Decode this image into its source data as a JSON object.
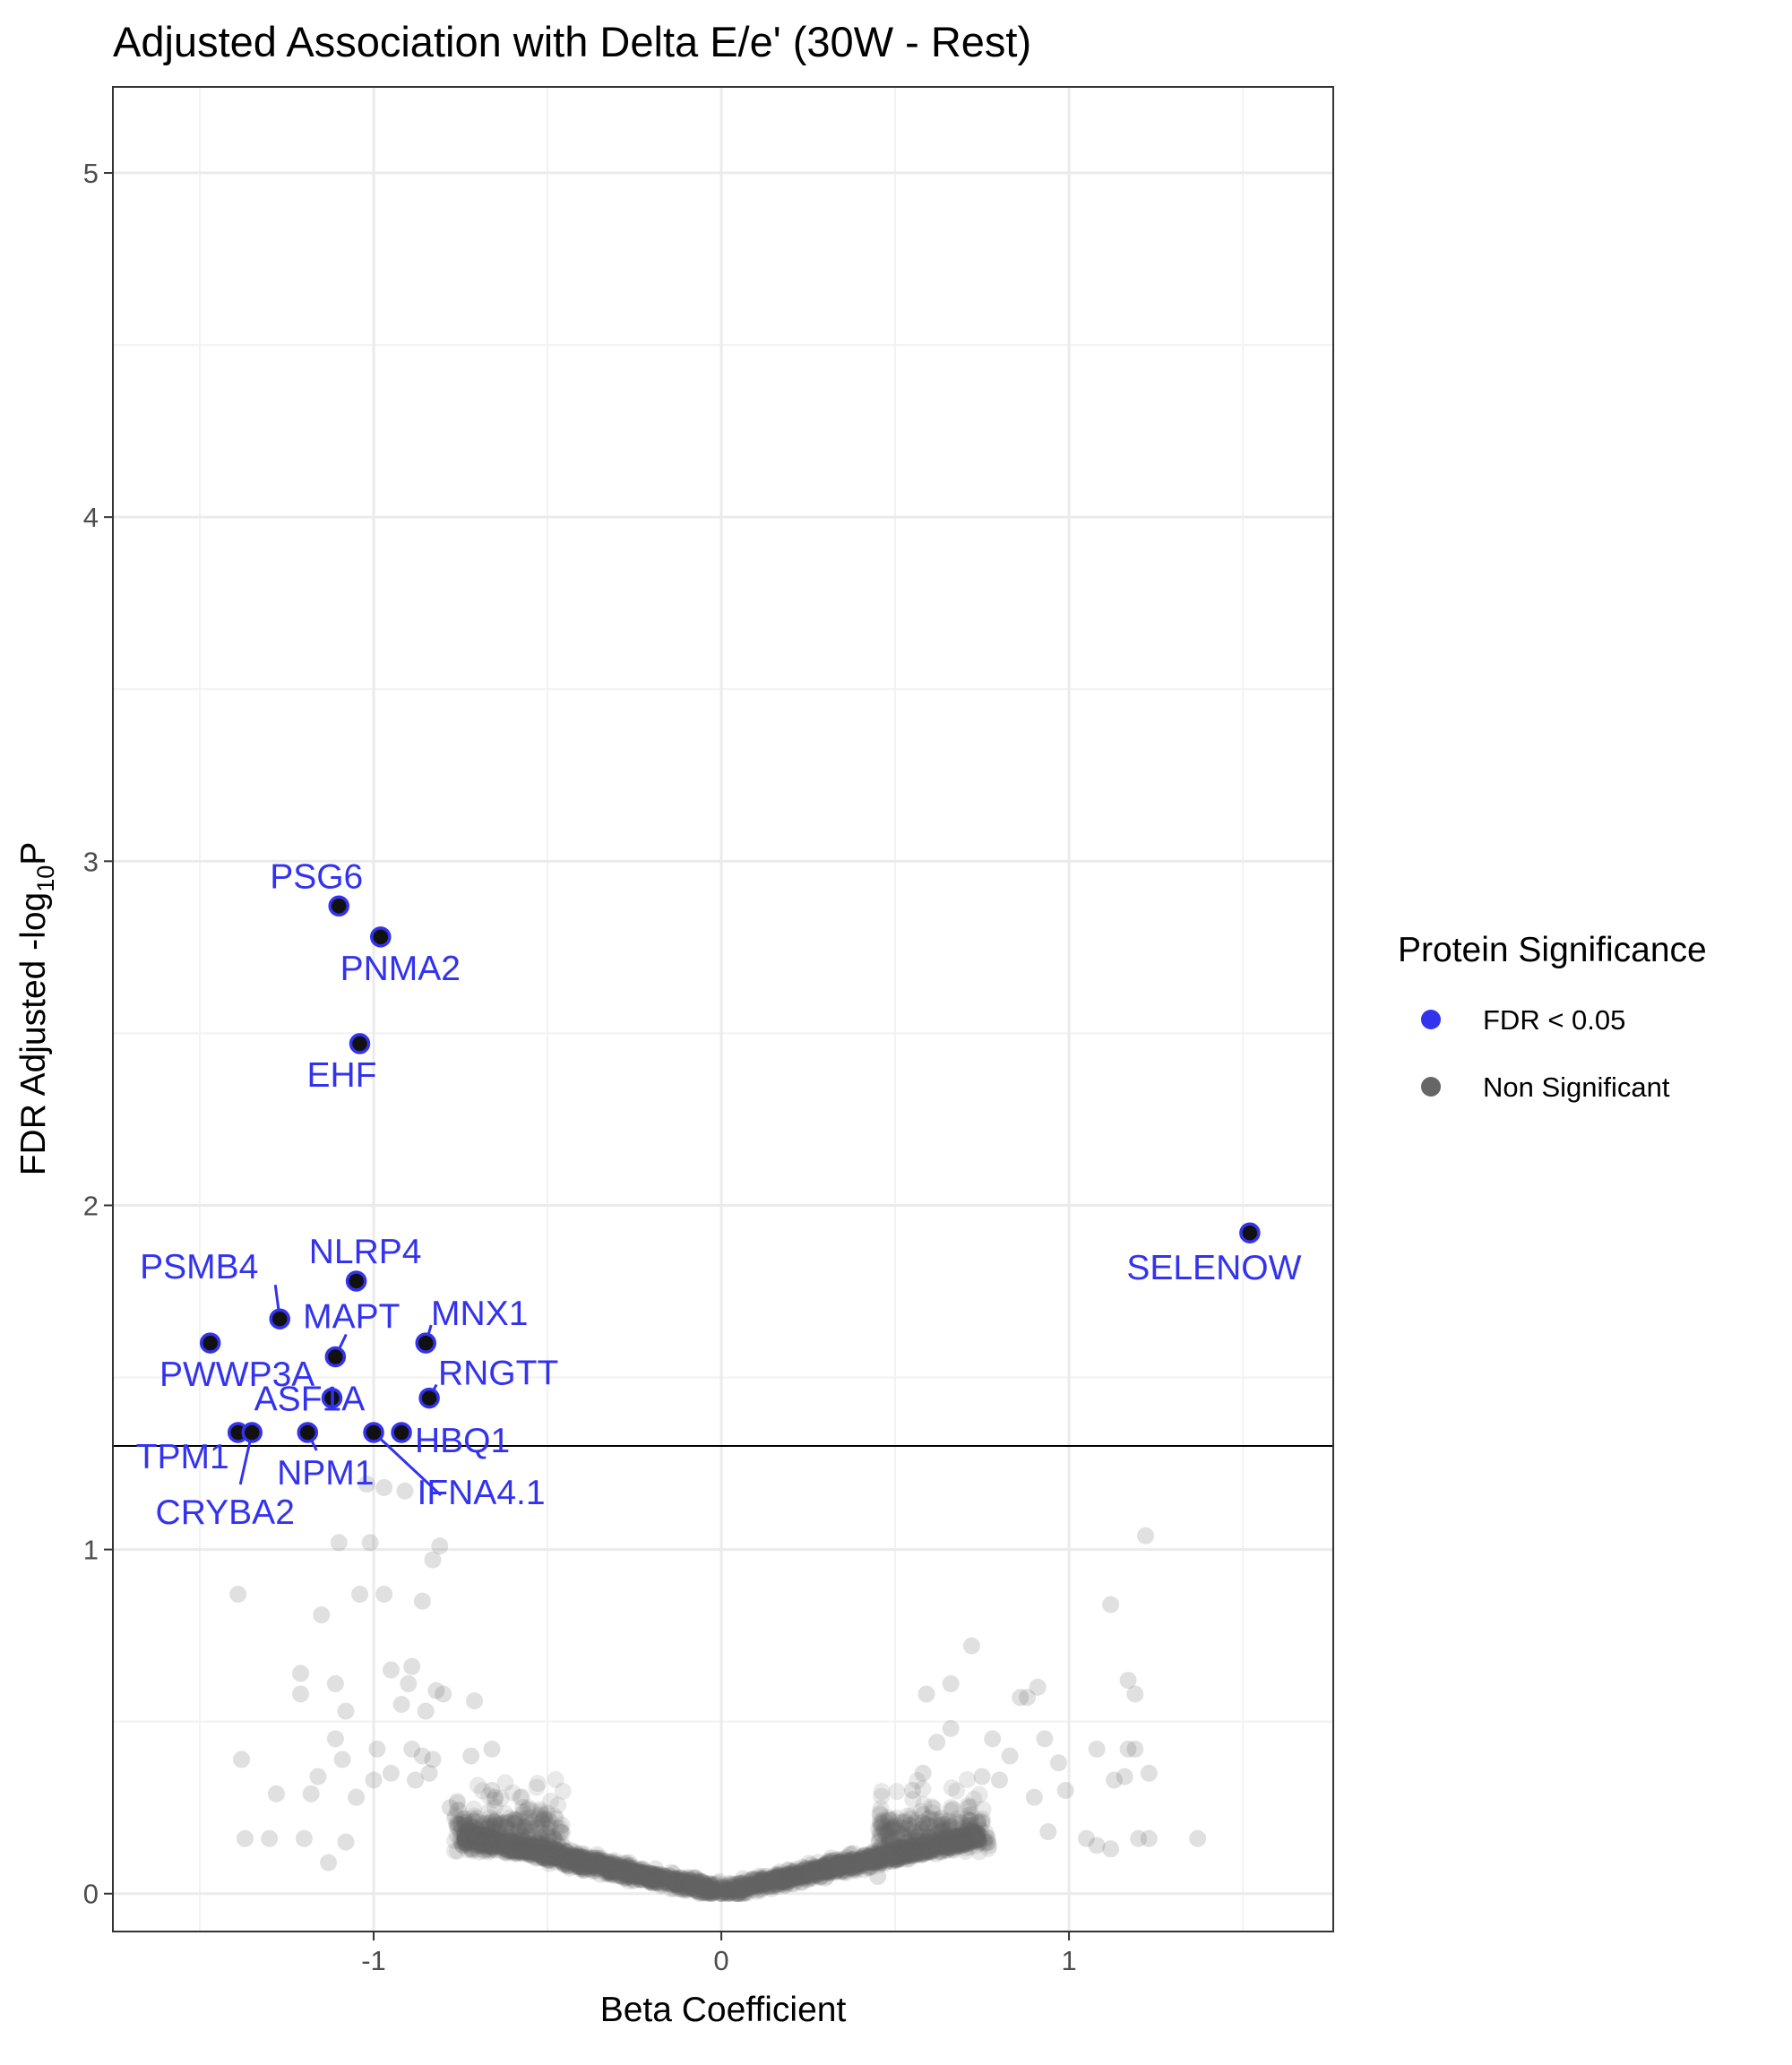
{
  "chart_data": {
    "type": "scatter",
    "title": "Adjusted Association with Delta E/e' (30W - Rest)",
    "xlabel": "Beta Coefficient",
    "ylabel_main": "FDR Adjusted -log",
    "ylabel_sub": "10",
    "ylabel_tail": "P",
    "xlim": [
      -1.75,
      1.76
    ],
    "ylim": [
      -0.11,
      5.25
    ],
    "x_ticks": [
      -1,
      0,
      1
    ],
    "x_tick_labels": [
      "-1",
      "0",
      "1"
    ],
    "y_ticks": [
      0,
      1,
      2,
      3,
      4,
      5
    ],
    "y_tick_labels": [
      "0",
      "1",
      "2",
      "3",
      "4",
      "5"
    ],
    "x_minor_ticks": [
      -1.5,
      -0.5,
      0.5,
      1.5
    ],
    "y_minor_ticks": [
      0.5,
      1.5,
      2.5,
      3.5,
      4.5
    ],
    "threshold_y": 1.301,
    "grid": true,
    "legend": {
      "title": "Protein Significance",
      "position": "right",
      "items": [
        {
          "label": "FDR < 0.05",
          "color": "#3333ee"
        },
        {
          "label": "Non Significant",
          "color": "#666666"
        }
      ]
    },
    "colors": {
      "significant_label": "#3333ee",
      "nonsig": "#666666",
      "sig_point": "#111111"
    },
    "significant": [
      {
        "label": "PSG6",
        "x": -1.1,
        "y": 2.87
      },
      {
        "label": "PNMA2",
        "x": -0.98,
        "y": 2.78
      },
      {
        "label": "EHF",
        "x": -1.04,
        "y": 2.47
      },
      {
        "label": "SELENOW",
        "x": 1.52,
        "y": 1.92
      },
      {
        "label": "NLRP4",
        "x": -1.05,
        "y": 1.78
      },
      {
        "label": "PSMB4",
        "x": -1.27,
        "y": 1.67
      },
      {
        "label": "MAPT",
        "x": -1.11,
        "y": 1.56
      },
      {
        "label": "MNX1",
        "x": -0.85,
        "y": 1.6
      },
      {
        "label": "PWWP3A",
        "x": -1.47,
        "y": 1.6
      },
      {
        "label": "ASF1A",
        "x": -1.12,
        "y": 1.44
      },
      {
        "label": "RNGTT",
        "x": -0.84,
        "y": 1.44
      },
      {
        "label": "TPM1",
        "x": -1.39,
        "y": 1.34
      },
      {
        "label": "CRYBA2",
        "x": -1.35,
        "y": 1.34
      },
      {
        "label": "NPM1",
        "x": -1.19,
        "y": 1.34
      },
      {
        "label": "HBQ1",
        "x": -0.92,
        "y": 1.34
      },
      {
        "label": "IFNA4.1",
        "x": -1.0,
        "y": 1.34
      }
    ],
    "nonsignificant_outliers": [
      [
        -1.02,
        1.19
      ],
      [
        -0.97,
        1.18
      ],
      [
        -0.91,
        1.17
      ],
      [
        -0.81,
        1.01
      ],
      [
        -0.83,
        0.97
      ],
      [
        -1.01,
        1.02
      ],
      [
        -1.1,
        1.02
      ],
      [
        -0.97,
        0.87
      ],
      [
        -0.86,
        0.85
      ],
      [
        -1.04,
        0.87
      ],
      [
        -1.39,
        0.87
      ],
      [
        -1.15,
        0.81
      ],
      [
        -0.95,
        0.65
      ],
      [
        -0.89,
        0.66
      ],
      [
        -0.9,
        0.61
      ],
      [
        -0.82,
        0.59
      ],
      [
        -0.8,
        0.58
      ],
      [
        -0.71,
        0.56
      ],
      [
        -0.92,
        0.55
      ],
      [
        -0.85,
        0.53
      ],
      [
        -1.11,
        0.61
      ],
      [
        -1.08,
        0.53
      ],
      [
        -1.21,
        0.64
      ],
      [
        -1.21,
        0.58
      ],
      [
        -0.89,
        0.42
      ],
      [
        -0.86,
        0.4
      ],
      [
        -0.83,
        0.39
      ],
      [
        -0.72,
        0.4
      ],
      [
        -0.66,
        0.42
      ],
      [
        -0.99,
        0.42
      ],
      [
        -1.11,
        0.45
      ],
      [
        -1.09,
        0.39
      ],
      [
        -1.38,
        0.39
      ],
      [
        -1.16,
        0.34
      ],
      [
        -1.28,
        0.29
      ],
      [
        -1.18,
        0.29
      ],
      [
        -1.2,
        0.16
      ],
      [
        -1.3,
        0.16
      ],
      [
        -1.37,
        0.16
      ],
      [
        -1.13,
        0.09
      ],
      [
        -1.08,
        0.15
      ],
      [
        -1.05,
        0.28
      ],
      [
        -1.0,
        0.33
      ],
      [
        -0.95,
        0.35
      ],
      [
        -0.88,
        0.33
      ],
      [
        -0.84,
        0.35
      ],
      [
        -0.78,
        0.25
      ],
      [
        -0.75,
        0.18
      ],
      [
        -0.66,
        0.3
      ],
      [
        -0.65,
        0.28
      ],
      [
        -0.55,
        0.2
      ],
      [
        -0.52,
        0.16
      ],
      [
        0.72,
        0.72
      ],
      [
        0.66,
        0.61
      ],
      [
        0.59,
        0.58
      ],
      [
        0.66,
        0.48
      ],
      [
        0.62,
        0.44
      ],
      [
        0.78,
        0.45
      ],
      [
        0.86,
        0.57
      ],
      [
        0.88,
        0.57
      ],
      [
        0.91,
        0.6
      ],
      [
        0.93,
        0.45
      ],
      [
        0.97,
        0.38
      ],
      [
        1.08,
        0.42
      ],
      [
        1.12,
        0.84
      ],
      [
        1.22,
        1.04
      ],
      [
        1.17,
        0.62
      ],
      [
        1.19,
        0.58
      ],
      [
        1.17,
        0.42
      ],
      [
        1.19,
        0.42
      ],
      [
        1.16,
        0.34
      ],
      [
        1.23,
        0.35
      ],
      [
        1.05,
        0.16
      ],
      [
        1.08,
        0.14
      ],
      [
        1.12,
        0.13
      ],
      [
        1.2,
        0.16
      ],
      [
        1.23,
        0.16
      ],
      [
        1.37,
        0.16
      ],
      [
        1.13,
        0.33
      ],
      [
        0.99,
        0.3
      ],
      [
        0.94,
        0.18
      ],
      [
        0.9,
        0.28
      ],
      [
        0.83,
        0.4
      ],
      [
        0.8,
        0.33
      ],
      [
        0.75,
        0.34
      ],
      [
        0.58,
        0.35
      ],
      [
        0.55,
        0.3
      ],
      [
        0.5,
        0.1
      ],
      [
        0.45,
        0.05
      ],
      [
        0.6,
        0.14
      ]
    ]
  }
}
